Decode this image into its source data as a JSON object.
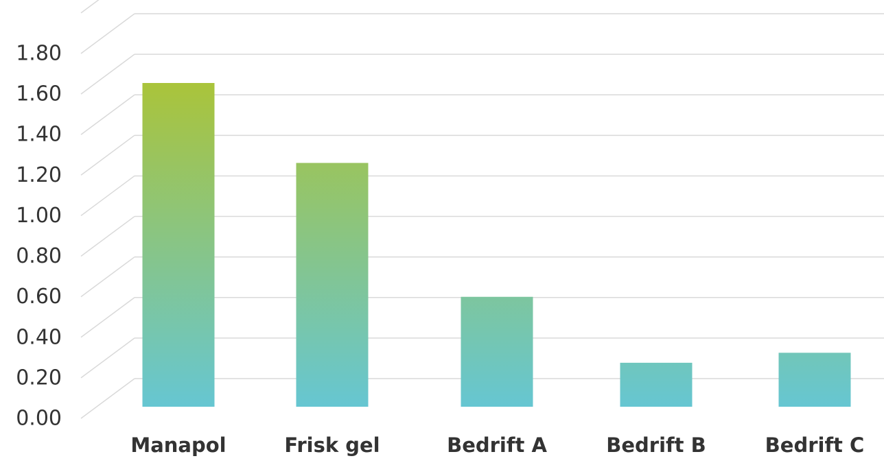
{
  "chart_data": {
    "type": "bar",
    "categories": [
      "Manapol",
      "Frisk gel",
      "Bedrift A",
      "Bedrift B",
      "Bedrift C"
    ],
    "values": [
      1.62,
      1.22,
      0.55,
      0.22,
      0.27
    ],
    "title": "",
    "xlabel": "",
    "ylabel": "",
    "ylim": [
      0,
      1.8
    ],
    "yticks": [
      "0.00",
      "0.20",
      "0.40",
      "0.60",
      "0.80",
      "1.00",
      "1.20",
      "1.40",
      "1.60",
      "1.80"
    ],
    "grid": true,
    "legend": "none",
    "style": "3d-perspective",
    "colors": {
      "gradient_top": "#aac43a",
      "gradient_bottom": "#66c6d2",
      "gridline": "#d9d9d9"
    }
  }
}
